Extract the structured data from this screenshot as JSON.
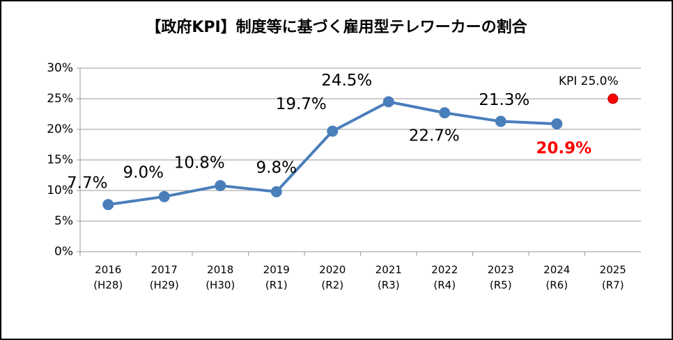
{
  "chart_data": {
    "type": "line",
    "title": "【政府KPI】制度等に基づく雇用型テレワーカーの割合",
    "categories": [
      "2016\n(H28)",
      "2017\n(H29)",
      "2018\n(H30)",
      "2019\n(R1)",
      "2020\n(R2)",
      "2021\n(R3)",
      "2022\n(R4)",
      "2023\n(R5)",
      "2024\n(R6)",
      "2025\n(R7)"
    ],
    "series": [
      {
        "color": "#4a7ebb",
        "values": [
          7.7,
          9.0,
          10.8,
          9.8,
          19.7,
          24.5,
          22.7,
          21.3,
          20.9,
          null
        ],
        "value_labels": [
          "7.7%",
          "9.0%",
          "10.8%",
          "9.8%",
          "19.7%",
          "24.5%",
          "22.7%",
          "21.3%",
          "20.9%",
          null
        ],
        "value_label_colors": [
          "#000000",
          "#000000",
          "#000000",
          "#000000",
          "#000000",
          "#000000",
          "#000000",
          "#000000",
          "#ff0000",
          null
        ]
      },
      {
        "color": "#ff0000",
        "values": [
          null,
          null,
          null,
          null,
          null,
          null,
          null,
          null,
          null,
          25.0
        ],
        "value_labels": [
          null,
          null,
          null,
          null,
          null,
          null,
          null,
          null,
          null,
          "KPI 25.0%"
        ]
      }
    ],
    "ylim": [
      0,
      30
    ],
    "yticks": [
      {
        "value": 0,
        "label": "0%"
      },
      {
        "value": 5,
        "label": "5%"
      },
      {
        "value": 10,
        "label": "10%"
      },
      {
        "value": 15,
        "label": "15%"
      },
      {
        "value": 20,
        "label": "20%"
      },
      {
        "value": 25,
        "label": "25%"
      },
      {
        "value": 30,
        "label": "30%"
      }
    ],
    "grid": true
  }
}
